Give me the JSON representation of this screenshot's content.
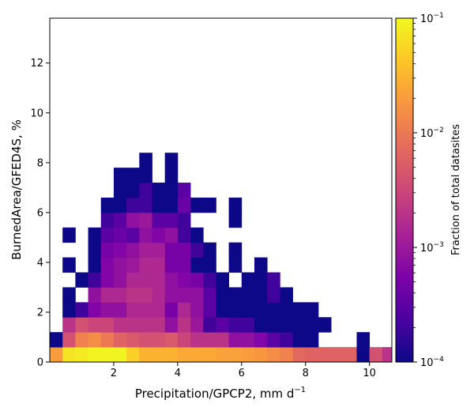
{
  "chart_data": {
    "type": "heatmap",
    "title": "",
    "xlabel": "Precipitation/GPCP2,  mm d",
    "xlabel_superscript": "−1",
    "ylabel": "BurnedArea/GFED4S,  %",
    "xlim": [
      0,
      10.7
    ],
    "ylim": [
      0,
      13.8
    ],
    "x_ticks": [
      2,
      4,
      6,
      8,
      10
    ],
    "y_ticks": [
      0,
      2,
      4,
      6,
      8,
      10,
      12
    ],
    "x_tick_labels": [
      "2",
      "4",
      "6",
      "8",
      "10"
    ],
    "y_tick_labels": [
      "0",
      "2",
      "4",
      "6",
      "8",
      "10",
      "12"
    ],
    "bin_width_x": 0.4,
    "bin_height_y": 0.6,
    "colormap": "plasma",
    "color_scale": "log",
    "colorbar": {
      "label": "Fraction of total datasites",
      "vmin": 0.0001,
      "vmax": 0.1,
      "tick_values": [
        0.1,
        0.01,
        0.001,
        0.0001
      ],
      "tick_bases": [
        "10",
        "10",
        "10",
        "10"
      ],
      "tick_exponents": [
        "−1",
        "−2",
        "−3",
        "−4"
      ]
    },
    "rows": [
      {
        "y0": 0.0,
        "x0": 0.0,
        "values": [
          0.02,
          0.07,
          0.08,
          0.09,
          0.09,
          0.09,
          0.05,
          0.03,
          0.03,
          0.03,
          0.025,
          0.025,
          0.025,
          0.022,
          0.022,
          0.02,
          0.018,
          0.015,
          0.012,
          0.007,
          0.006,
          0.006,
          0.006,
          0.006,
          0.0001,
          0.004,
          0.002,
          0.0008,
          0.0008
        ]
      },
      {
        "y0": 0.6,
        "x0": 0.0,
        "values": [
          0.0001,
          0.004,
          0.012,
          0.015,
          0.01,
          0.006,
          0.005,
          0.004,
          0.004,
          0.005,
          0.003,
          0.002,
          0.002,
          0.002,
          0.0008,
          0.0008,
          0.0006,
          0.0003,
          0.0002,
          0.0001,
          0.0001,
          null,
          null,
          null,
          0.0001
        ]
      },
      {
        "y0": 1.2,
        "x0": 0.4,
        "values": [
          0.002,
          0.004,
          0.003,
          0.003,
          0.002,
          0.002,
          0.002,
          0.002,
          0.0008,
          0.002,
          0.001,
          0.0002,
          0.0003,
          0.0002,
          0.0002,
          0.0001,
          0.0001,
          0.0001,
          0.0001,
          0.0001,
          0.0001
        ]
      },
      {
        "y0": 1.8,
        "x0": 0.4,
        "values": [
          0.0001,
          0.0002,
          0.0006,
          0.0008,
          0.0008,
          0.0015,
          0.0015,
          0.0015,
          0.0005,
          0.0015,
          0.0008,
          0.0003,
          0.0001,
          0.0001,
          0.0001,
          0.0001,
          0.0001,
          0.0001,
          0.0001,
          0.0001
        ]
      },
      {
        "y0": 2.4,
        "x0": 0.4,
        "values": [
          0.0001,
          null,
          0.0008,
          0.0015,
          0.0015,
          0.002,
          0.002,
          0.0015,
          0.0008,
          0.0008,
          0.0008,
          0.0003,
          0.0001,
          0.0001,
          0.0001,
          0.0001,
          0.0002,
          0.0001
        ]
      },
      {
        "y0": 3.0,
        "x0": 0.8,
        "values": [
          0.0001,
          0.0002,
          0.0006,
          0.0008,
          0.0015,
          0.0015,
          0.0015,
          0.0008,
          0.0006,
          0.0005,
          0.0002,
          0.0001,
          null,
          0.0001,
          0.0001,
          0.0002
        ]
      },
      {
        "y0": 3.6,
        "x0": 0.4,
        "values": [
          0.0001,
          null,
          0.0001,
          0.0006,
          0.0008,
          0.001,
          0.0015,
          0.0015,
          0.0005,
          0.0005,
          0.0001,
          0.0001,
          null,
          0.0001,
          null,
          0.0001
        ]
      },
      {
        "y0": 4.2,
        "x0": 1.2,
        "values": [
          0.0001,
          0.0005,
          0.0006,
          0.0008,
          0.0012,
          0.0012,
          0.0005,
          0.0005,
          0.0002,
          0.0001,
          null,
          0.0001
        ]
      },
      {
        "y0": 4.8,
        "x0": 0.4,
        "values": [
          0.0001,
          null,
          0.0001,
          0.0003,
          0.0004,
          0.0003,
          0.0008,
          0.0006,
          0.0008,
          0.0002,
          0.0001
        ]
      },
      {
        "y0": 5.4,
        "x0": 1.2,
        "values": [
          null,
          0.0002,
          0.0003,
          0.0008,
          0.001,
          0.0003,
          0.0003,
          0.0002,
          null,
          null,
          null,
          0.0001
        ]
      },
      {
        "y0": 6.0,
        "x0": 1.6,
        "values": [
          0.0001,
          0.0001,
          0.0002,
          0.0002,
          0.0001,
          0.0001,
          0.0004,
          0.0001,
          0.0001,
          null,
          0.0001
        ]
      },
      {
        "y0": 6.6,
        "x0": 2.0,
        "values": [
          0.0001,
          0.0001,
          0.0002,
          0.0001,
          0.0001,
          0.0003
        ]
      },
      {
        "y0": 7.2,
        "x0": 2.0,
        "values": [
          0.0001,
          0.0001,
          0.0001,
          null,
          0.0001
        ]
      },
      {
        "y0": 7.8,
        "x0": 2.8,
        "values": [
          0.0001,
          null,
          0.0001
        ]
      }
    ]
  }
}
